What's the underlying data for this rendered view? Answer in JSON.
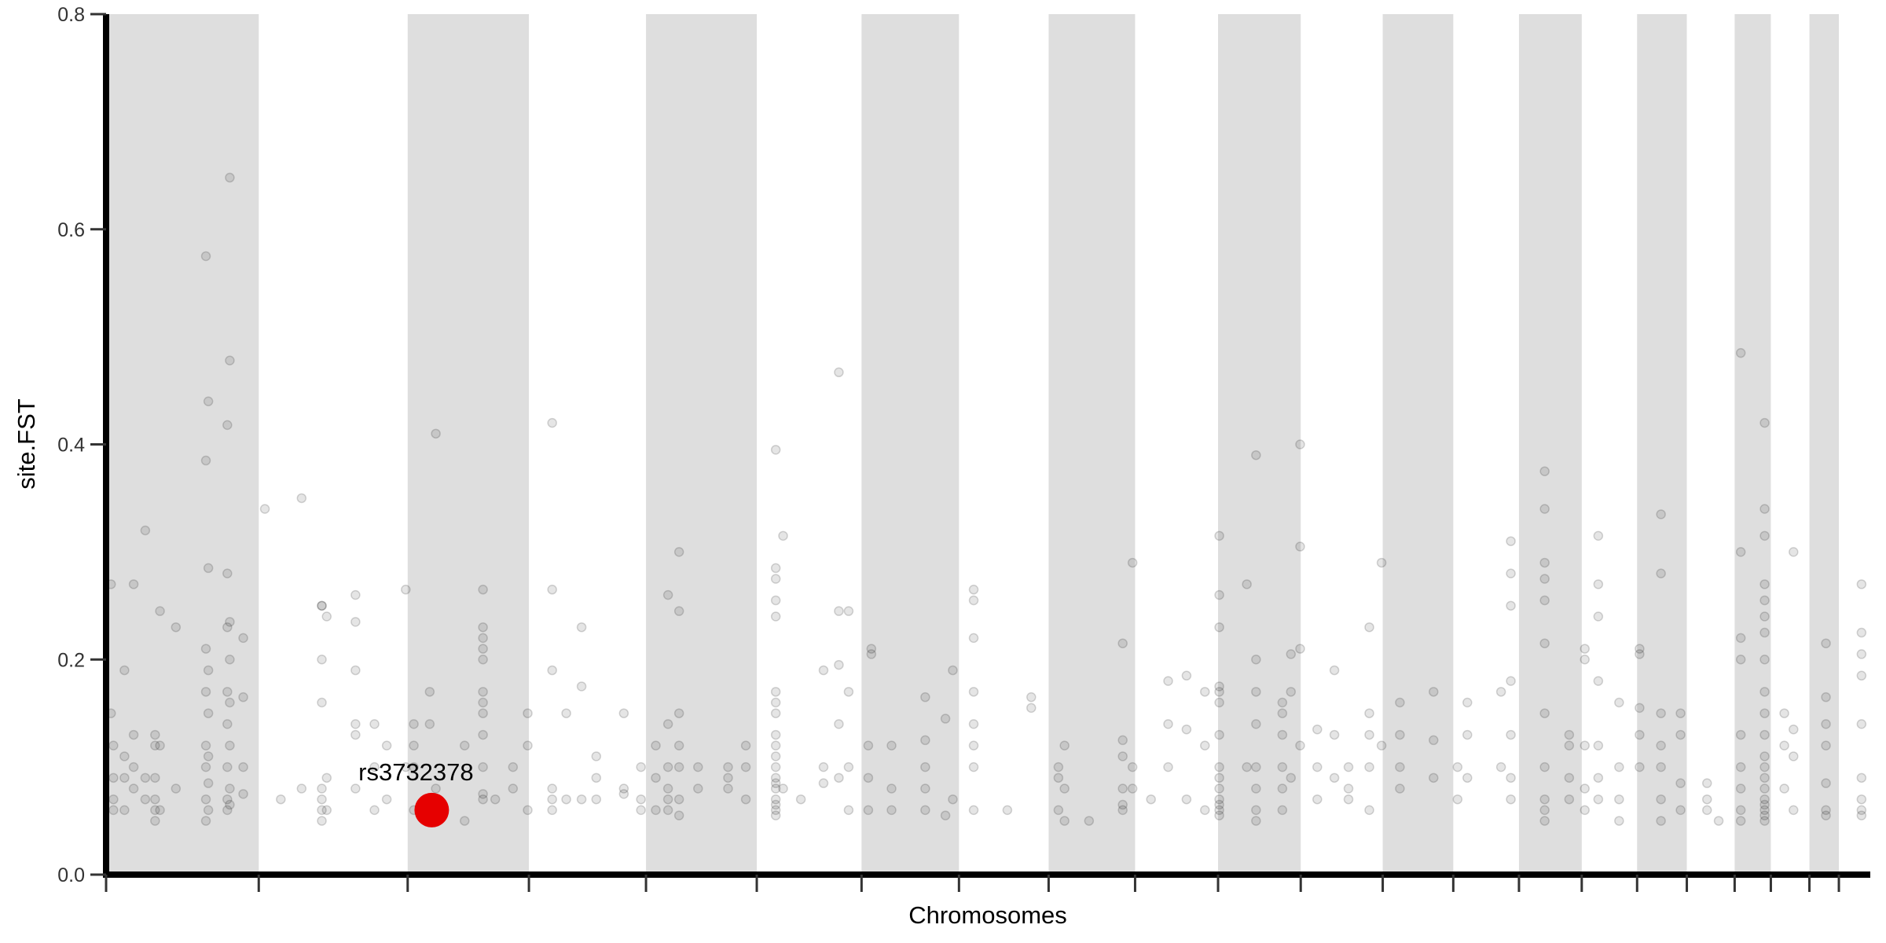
{
  "chart_data": {
    "type": "scatter",
    "title": "",
    "xlabel": "Chromosomes",
    "ylabel": "site.FST",
    "ylim": [
      0,
      0.8
    ],
    "yticks": [
      "0.0",
      "0.2",
      "0.4",
      "0.6",
      "0.8"
    ],
    "grid": false,
    "legend": "none",
    "alternating_band_color": "#dedede",
    "point_color": "#000000",
    "highlight_color": "#e60000",
    "chromosome_lengths_mb": [
      249.3,
      243.2,
      198.0,
      191.2,
      180.9,
      171.1,
      159.1,
      146.4,
      141.2,
      135.5,
      135.0,
      133.9,
      115.2,
      107.3,
      102.5,
      90.4,
      81.2,
      78.1,
      59.1,
      63.0,
      48.1,
      51.3
    ],
    "highlight": {
      "label": "rs3732378",
      "chromosome": 3,
      "position_mb": 39.3,
      "fst": 0.06
    },
    "points_by_locus": [
      [
        1,
        8,
        [
          0.27,
          0.15
        ]
      ],
      [
        1,
        12,
        [
          0.12,
          0.09,
          0.07,
          0.06
        ]
      ],
      [
        1,
        30,
        [
          0.19,
          0.11,
          0.09,
          0.06
        ]
      ],
      [
        1,
        45,
        [
          0.27,
          0.13,
          0.1,
          0.08
        ]
      ],
      [
        1,
        64,
        [
          0.32,
          0.09,
          0.07
        ]
      ],
      [
        1,
        80,
        [
          0.13,
          0.12,
          0.09,
          0.07,
          0.06,
          0.05
        ]
      ],
      [
        1,
        88,
        [
          0.245,
          0.12,
          0.06
        ]
      ],
      [
        1,
        114,
        [
          0.23,
          0.08
        ]
      ],
      [
        1,
        163,
        [
          0.575,
          0.385,
          0.21,
          0.17,
          0.12,
          0.1,
          0.07,
          0.05
        ]
      ],
      [
        1,
        167,
        [
          0.44,
          0.285,
          0.19,
          0.15,
          0.11,
          0.085,
          0.06
        ]
      ],
      [
        1,
        198,
        [
          0.418,
          0.28,
          0.23,
          0.17,
          0.14,
          0.1,
          0.07,
          0.06
        ]
      ],
      [
        1,
        202,
        [
          0.648,
          0.478,
          0.235,
          0.2,
          0.16,
          0.12,
          0.08,
          0.065
        ]
      ],
      [
        1,
        224,
        [
          0.22,
          0.165,
          0.1,
          0.075
        ]
      ],
      [
        2,
        10,
        [
          0.34
        ]
      ],
      [
        2,
        36,
        [
          0.07
        ]
      ],
      [
        2,
        70,
        [
          0.35,
          0.08
        ]
      ],
      [
        2,
        103,
        [
          0.25,
          0.25,
          0.2,
          0.16,
          0.08,
          0.07,
          0.06,
          0.05
        ]
      ],
      [
        2,
        111,
        [
          0.24,
          0.09,
          0.06
        ]
      ],
      [
        2,
        158,
        [
          0.26,
          0.235,
          0.19,
          0.14,
          0.13,
          0.08
        ]
      ],
      [
        2,
        189,
        [
          0.14,
          0.1,
          0.06
        ]
      ],
      [
        2,
        209,
        [
          0.12,
          0.07
        ]
      ],
      [
        2,
        240,
        [
          0.265,
          0.1
        ]
      ],
      [
        3,
        10,
        [
          0.14,
          0.12,
          0.1,
          0.06
        ]
      ],
      [
        3,
        36,
        [
          0.17,
          0.14,
          0.06
        ]
      ],
      [
        3,
        46,
        [
          0.41,
          0.08
        ]
      ],
      [
        3,
        93,
        [
          0.12,
          0.05
        ]
      ],
      [
        3,
        123,
        [
          0.265,
          0.23,
          0.22,
          0.21,
          0.2,
          0.17,
          0.16,
          0.15,
          0.13,
          0.1,
          0.075,
          0.07
        ]
      ],
      [
        3,
        143,
        [
          0.07
        ]
      ],
      [
        3,
        172,
        [
          0.1,
          0.08
        ]
      ],
      [
        3,
        196,
        [
          0.15,
          0.12,
          0.06
        ]
      ],
      [
        4,
        38,
        [
          0.42,
          0.265,
          0.19,
          0.08,
          0.07,
          0.06
        ]
      ],
      [
        4,
        61,
        [
          0.15,
          0.07
        ]
      ],
      [
        4,
        86,
        [
          0.23,
          0.175,
          0.07
        ]
      ],
      [
        4,
        110,
        [
          0.11,
          0.09,
          0.07
        ]
      ],
      [
        4,
        155,
        [
          0.15,
          0.08,
          0.075
        ]
      ],
      [
        4,
        183,
        [
          0.1,
          0.07,
          0.06
        ]
      ],
      [
        5,
        16,
        [
          0.12,
          0.09,
          0.06
        ]
      ],
      [
        5,
        36,
        [
          0.26,
          0.14,
          0.1,
          0.08,
          0.07,
          0.06
        ]
      ],
      [
        5,
        54,
        [
          0.3,
          0.245,
          0.15,
          0.12,
          0.1,
          0.07,
          0.055
        ]
      ],
      [
        5,
        85,
        [
          0.1,
          0.08
        ]
      ],
      [
        5,
        134,
        [
          0.1,
          0.09,
          0.08
        ]
      ],
      [
        5,
        163,
        [
          0.12,
          0.1,
          0.07
        ]
      ],
      [
        6,
        31,
        [
          0.395,
          0.285,
          0.275,
          0.255,
          0.24,
          0.17,
          0.16,
          0.15,
          0.13,
          0.12,
          0.11,
          0.1,
          0.09,
          0.085,
          0.08,
          0.07,
          0.065,
          0.06,
          0.055
        ]
      ],
      [
        6,
        43,
        [
          0.315,
          0.08
        ]
      ],
      [
        6,
        72,
        [
          0.07
        ]
      ],
      [
        6,
        109,
        [
          0.19,
          0.1,
          0.085
        ]
      ],
      [
        6,
        134,
        [
          0.467,
          0.245,
          0.195,
          0.14,
          0.09
        ]
      ],
      [
        6,
        150,
        [
          0.245,
          0.17,
          0.1,
          0.06
        ]
      ],
      [
        7,
        11,
        [
          0.12,
          0.09,
          0.06
        ]
      ],
      [
        7,
        16,
        [
          0.21,
          0.205
        ]
      ],
      [
        7,
        49,
        [
          0.12,
          0.08,
          0.06
        ]
      ],
      [
        7,
        104,
        [
          0.165,
          0.125,
          0.1,
          0.08,
          0.06
        ]
      ],
      [
        7,
        137,
        [
          0.145,
          0.055
        ]
      ],
      [
        7,
        149,
        [
          0.19,
          0.07
        ]
      ],
      [
        8,
        24,
        [
          0.265,
          0.255,
          0.22,
          0.17,
          0.14,
          0.12,
          0.1,
          0.06
        ]
      ],
      [
        8,
        79,
        [
          0.06
        ]
      ],
      [
        8,
        118,
        [
          0.165,
          0.155
        ]
      ],
      [
        9,
        16,
        [
          0.1,
          0.09,
          0.06
        ]
      ],
      [
        9,
        26,
        [
          0.12,
          0.08,
          0.05
        ]
      ],
      [
        9,
        66,
        [
          0.05
        ]
      ],
      [
        9,
        121,
        [
          0.215,
          0.125,
          0.11,
          0.08,
          0.065,
          0.06
        ]
      ],
      [
        9,
        137,
        [
          0.29,
          0.1,
          0.08
        ]
      ],
      [
        10,
        26,
        [
          0.07
        ]
      ],
      [
        10,
        54,
        [
          0.18,
          0.14,
          0.1
        ]
      ],
      [
        10,
        84,
        [
          0.185,
          0.135,
          0.07
        ]
      ],
      [
        10,
        114,
        [
          0.17,
          0.12,
          0.06
        ]
      ],
      [
        11,
        2,
        [
          0.315,
          0.26,
          0.23,
          0.175,
          0.17,
          0.16,
          0.13,
          0.1,
          0.09,
          0.08,
          0.07,
          0.065,
          0.06,
          0.055
        ]
      ],
      [
        11,
        47,
        [
          0.27,
          0.1
        ]
      ],
      [
        11,
        62,
        [
          0.39,
          0.2,
          0.17,
          0.14,
          0.1,
          0.08,
          0.06,
          0.05
        ]
      ],
      [
        11,
        105,
        [
          0.16,
          0.15,
          0.13,
          0.1,
          0.08,
          0.06
        ]
      ],
      [
        11,
        119,
        [
          0.205,
          0.17,
          0.09
        ]
      ],
      [
        11,
        134,
        [
          0.4,
          0.305,
          0.21,
          0.12
        ]
      ],
      [
        12,
        27,
        [
          0.135,
          0.1,
          0.07
        ]
      ],
      [
        12,
        55,
        [
          0.19,
          0.13,
          0.09
        ]
      ],
      [
        12,
        78,
        [
          0.1,
          0.08,
          0.07
        ]
      ],
      [
        12,
        112,
        [
          0.23,
          0.15,
          0.13,
          0.1,
          0.06
        ]
      ],
      [
        12,
        132,
        [
          0.29,
          0.12
        ]
      ],
      [
        13,
        28,
        [
          0.16,
          0.13,
          0.1,
          0.08
        ]
      ],
      [
        13,
        83,
        [
          0.17,
          0.125,
          0.09
        ]
      ],
      [
        14,
        7,
        [
          0.1,
          0.07
        ]
      ],
      [
        14,
        23,
        [
          0.16,
          0.13,
          0.09
        ]
      ],
      [
        14,
        78,
        [
          0.17,
          0.1
        ]
      ],
      [
        14,
        94,
        [
          0.31,
          0.28,
          0.25,
          0.18,
          0.13,
          0.09,
          0.07
        ]
      ],
      [
        15,
        42,
        [
          0.375,
          0.34,
          0.29,
          0.275,
          0.255,
          0.215,
          0.15,
          0.1,
          0.07,
          0.06,
          0.05
        ]
      ],
      [
        15,
        82,
        [
          0.13,
          0.12,
          0.09,
          0.07
        ]
      ],
      [
        16,
        5,
        [
          0.21,
          0.2,
          0.12,
          0.08,
          0.06
        ]
      ],
      [
        16,
        27,
        [
          0.315,
          0.27,
          0.24,
          0.18,
          0.12,
          0.09,
          0.07
        ]
      ],
      [
        16,
        61,
        [
          0.16,
          0.1,
          0.07,
          0.05
        ]
      ],
      [
        17,
        4,
        [
          0.21,
          0.205,
          0.155,
          0.13,
          0.1
        ]
      ],
      [
        17,
        39,
        [
          0.335,
          0.28,
          0.15,
          0.12,
          0.1,
          0.07,
          0.05
        ]
      ],
      [
        17,
        71,
        [
          0.15,
          0.13,
          0.085,
          0.06
        ]
      ],
      [
        18,
        33,
        [
          0.085,
          0.07,
          0.06
        ]
      ],
      [
        18,
        52,
        [
          0.05
        ]
      ],
      [
        19,
        10,
        [
          0.485,
          0.3,
          0.22,
          0.2,
          0.13,
          0.1,
          0.08,
          0.06,
          0.05
        ]
      ],
      [
        19,
        49,
        [
          0.42,
          0.34,
          0.315,
          0.27,
          0.255,
          0.24,
          0.225,
          0.2,
          0.17,
          0.15,
          0.13,
          0.11,
          0.1,
          0.09,
          0.08,
          0.07,
          0.065,
          0.06,
          0.055,
          0.05
        ]
      ],
      [
        20,
        22,
        [
          0.15,
          0.12,
          0.08
        ]
      ],
      [
        20,
        37,
        [
          0.3,
          0.135,
          0.11,
          0.06
        ]
      ],
      [
        21,
        27,
        [
          0.215,
          0.165,
          0.14,
          0.12,
          0.085,
          0.06,
          0.055
        ]
      ],
      [
        22,
        37,
        [
          0.27,
          0.225,
          0.205,
          0.185,
          0.14,
          0.09,
          0.07,
          0.06,
          0.055
        ]
      ]
    ]
  }
}
